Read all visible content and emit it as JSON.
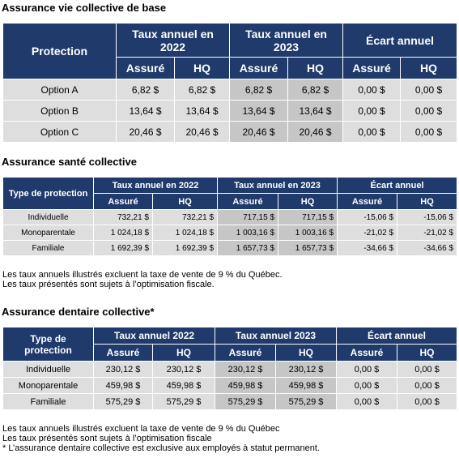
{
  "sections": [
    {
      "title": "Assurance vie collective de base",
      "first_header": "Protection",
      "groups": [
        "Taux annuel en 2022",
        "Taux annuel en 2023",
        "Écart annuel"
      ],
      "subheaders": [
        "Assuré",
        "HQ",
        "Assuré",
        "HQ",
        "Assuré",
        "HQ"
      ],
      "rows": [
        [
          "Option A",
          "6,82 $",
          "6,82 $",
          "6,82 $",
          "6,82 $",
          "0,00 $",
          "0,00 $"
        ],
        [
          "Option B",
          "13,64 $",
          "13,64 $",
          "13,64 $",
          "13,64 $",
          "0,00 $",
          "0,00 $"
        ],
        [
          "Option C",
          "20,46 $",
          "20,46 $",
          "20,46 $",
          "20,46 $",
          "0,00 $",
          "0,00 $"
        ]
      ],
      "notes": []
    },
    {
      "title": "Assurance santé collective",
      "first_header": "Type de protection",
      "groups": [
        "Taux annuel en 2022",
        "Taux annuel en 2023",
        "Écart annuel"
      ],
      "subheaders": [
        "Assuré",
        "HQ",
        "Assuré",
        "HQ",
        "Assuré",
        "HQ"
      ],
      "rows": [
        [
          "Individuelle",
          "732,21 $",
          "732,21 $",
          "717,15 $",
          "717,15 $",
          "-15,06 $",
          "-15,06 $"
        ],
        [
          "Monoparentale",
          "1 024,18 $",
          "1 024,18 $",
          "1 003,16 $",
          "1 003,16 $",
          "-21,02 $",
          "-21,02 $"
        ],
        [
          "Familiale",
          "1 692,39 $",
          "1 692,39 $",
          "1 657,73 $",
          "1 657,73 $",
          "-34,66 $",
          "-34,66 $"
        ]
      ],
      "notes": [
        "Les taux annuels illustrés excluent la taxe de vente de 9 % du Québec.",
        "Les taux présentés sont sujets à l’optimisation fiscale."
      ]
    },
    {
      "title": "Assurance dentaire collective*",
      "first_header": "Type de protection",
      "groups": [
        "Taux annuel 2022",
        "Taux annuel 2023",
        "Écart annuel"
      ],
      "subheaders": [
        "Assuré",
        "HQ",
        "Assuré",
        "HQ",
        "Assuré",
        "HQ"
      ],
      "rows": [
        [
          "Individuelle",
          "230,12 $",
          "230,12 $",
          "230,12 $",
          "230,12 $",
          "0,00 $",
          "0,00 $"
        ],
        [
          "Monoparentale",
          "459,98 $",
          "459,98 $",
          "459,98 $",
          "459,98 $",
          "0,00 $",
          "0,00 $"
        ],
        [
          "Familiale",
          "575,29 $",
          "575,29 $",
          "575,29 $",
          "575,29 $",
          "0,00 $",
          "0,00 $"
        ]
      ],
      "notes": [
        "Les taux annuels illustrés excluent la taxe de vente de 9 % du Québec",
        "Les taux présentés sont sujets à l’optimisation fiscale",
        "* L’assurance dentaire collective est exclusive aux employés à statut permanent."
      ]
    }
  ]
}
